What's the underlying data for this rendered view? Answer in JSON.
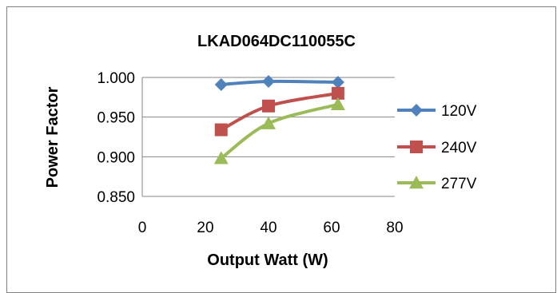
{
  "chart_data": {
    "type": "line",
    "title": "LKAD064DC110055C",
    "xlabel": "Output Watt (W)",
    "ylabel": "Power Factor",
    "xlim": [
      0,
      80
    ],
    "ylim": [
      0.85,
      1.0
    ],
    "xticks": [
      "0",
      "20",
      "40",
      "60",
      "80"
    ],
    "yticks": [
      "0.850",
      "0.900",
      "0.950",
      "1.000"
    ],
    "grid": "horizontal",
    "legend_position": "right",
    "series": [
      {
        "name": "120V",
        "color": "#4f81bd",
        "marker": "diamond",
        "x": [
          25,
          40,
          62
        ],
        "y": [
          0.991,
          0.995,
          0.994
        ]
      },
      {
        "name": "240V",
        "color": "#c0504d",
        "marker": "square",
        "x": [
          25,
          40,
          62
        ],
        "y": [
          0.934,
          0.964,
          0.98
        ]
      },
      {
        "name": "277V",
        "color": "#9bbb59",
        "marker": "triangle",
        "x": [
          25,
          40,
          62
        ],
        "y": [
          0.898,
          0.942,
          0.966
        ]
      }
    ]
  }
}
